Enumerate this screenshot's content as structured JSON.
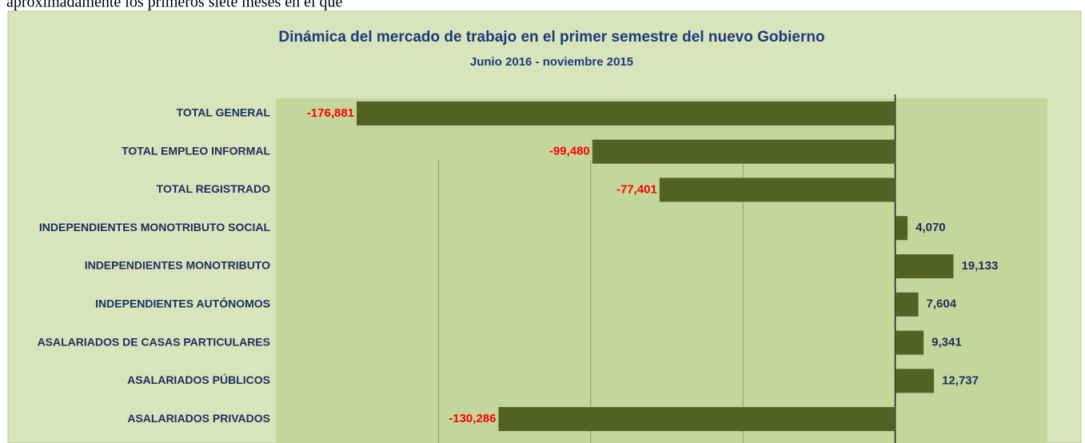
{
  "intro_text": "aproximadamente los primeros siete meses en el que",
  "chart_data": {
    "type": "bar",
    "orientation": "horizontal",
    "title": "Dinámica del mercado de trabajo en el primer semestre del nuevo Gobierno",
    "subtitle": "Junio 2016 - noviembre 2015",
    "categories": [
      "TOTAL GENERAL",
      "TOTAL  EMPLEO INFORMAL",
      "TOTAL  REGISTRADO",
      "INDEPENDIENTES MONOTRIBUTO SOCIAL",
      "INDEPENDIENTES MONOTRIBUTO",
      "INDEPENDIENTES AUTÓNOMOS",
      "ASALARIADOS DE CASAS PARTICULARES",
      "ASALARIADOS PÚBLICOS",
      "ASALARIADOS PRIVADOS"
    ],
    "values": [
      -176881,
      -99480,
      -77401,
      4070,
      19133,
      7604,
      9341,
      12737,
      -130286
    ],
    "value_labels": [
      "-176,881",
      "-99,480",
      "-77,401",
      "4,070",
      "19,133",
      "7,604",
      "9,341",
      "12,737",
      "-130,286"
    ],
    "color": "#536125",
    "negative_label_color": "#ff0000",
    "positive_label_color": "#1f2d5c",
    "xlim": [
      -200000,
      50000
    ],
    "xticks": [
      -150000,
      -100000,
      -50000,
      0
    ],
    "grid": true
  }
}
